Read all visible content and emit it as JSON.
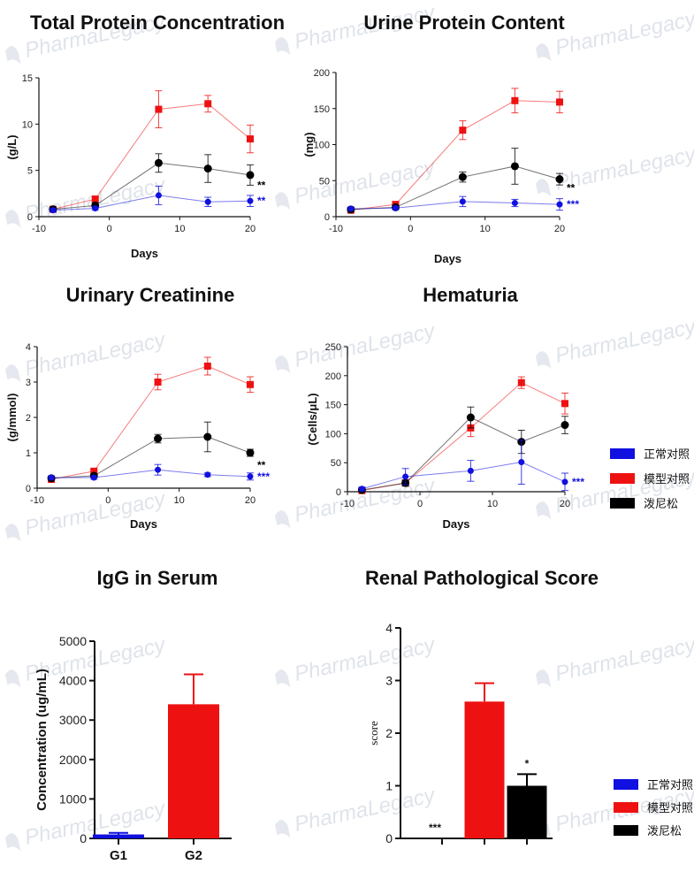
{
  "colors": {
    "normal": "#1010e0",
    "model": "#ee1111",
    "drug": "#000000",
    "axis": "#111111",
    "watermark": "#c5cdd9"
  },
  "watermark": "PharmaLegacy",
  "legend_top": [
    "正常对照",
    "模型对照",
    "泼尼松"
  ],
  "legend_bottom": [
    "正常对照",
    "模型对照",
    "泼尼松"
  ],
  "chart_data": [
    {
      "type": "line",
      "title": "Total Protein Concentration",
      "xlabel": "Days",
      "ylabel": "(g/L)",
      "xlim": [
        -10,
        20
      ],
      "ylim": [
        0,
        15
      ],
      "xticks": [
        -10,
        0,
        10,
        20
      ],
      "yticks": [
        0,
        5,
        10,
        15
      ],
      "x": [
        -8,
        -2,
        7,
        14,
        20
      ],
      "series": [
        {
          "key": "model",
          "values": [
            0.8,
            1.9,
            11.6,
            12.2,
            8.4
          ],
          "err": [
            0.2,
            0.3,
            2.0,
            0.9,
            1.5
          ]
        },
        {
          "key": "drug",
          "values": [
            0.8,
            1.2,
            5.8,
            5.2,
            4.5
          ],
          "err": [
            0.2,
            0.3,
            1.0,
            1.5,
            1.1
          ]
        },
        {
          "key": "normal",
          "values": [
            0.7,
            0.9,
            2.3,
            1.6,
            1.7
          ],
          "err": [
            0.2,
            0.2,
            1.0,
            0.5,
            0.6
          ],
          "sig": "**"
        }
      ],
      "annotations": [
        {
          "text": "**",
          "x": 20,
          "y": 3.4,
          "color": "drug"
        }
      ]
    },
    {
      "type": "line",
      "title": "Urine Protein Content",
      "xlabel": "Days",
      "ylabel": "(mg)",
      "xlim": [
        -10,
        20
      ],
      "ylim": [
        0,
        200
      ],
      "xticks": [
        -10,
        0,
        10,
        20
      ],
      "yticks": [
        0,
        50,
        100,
        150,
        200
      ],
      "x": [
        -8,
        -2,
        7,
        14,
        20
      ],
      "series": [
        {
          "key": "model",
          "values": [
            9,
            17,
            120,
            161,
            159
          ],
          "err": [
            2,
            3,
            13,
            17,
            15
          ]
        },
        {
          "key": "drug",
          "values": [
            10,
            13,
            55,
            70,
            52
          ],
          "err": [
            2,
            3,
            7,
            25,
            8
          ]
        },
        {
          "key": "normal",
          "values": [
            11,
            12,
            21,
            19,
            17
          ],
          "err": [
            2,
            2,
            7,
            5,
            8
          ],
          "sig": "***"
        }
      ],
      "annotations": [
        {
          "text": "**",
          "x": 20,
          "y": 40,
          "color": "drug"
        }
      ]
    },
    {
      "type": "line",
      "title": "Urinary Creatinine",
      "xlabel": "Days",
      "ylabel": "(g/mmol)",
      "xlim": [
        -10,
        20
      ],
      "ylim": [
        0,
        4
      ],
      "xticks": [
        -10,
        0,
        10,
        20
      ],
      "yticks": [
        0,
        1,
        2,
        3,
        4
      ],
      "x": [
        -8,
        -2,
        7,
        14,
        20
      ],
      "series": [
        {
          "key": "model",
          "values": [
            0.25,
            0.48,
            3.0,
            3.45,
            2.93
          ],
          "err": [
            0.05,
            0.05,
            0.22,
            0.25,
            0.22
          ]
        },
        {
          "key": "drug",
          "values": [
            0.28,
            0.35,
            1.4,
            1.45,
            1.0
          ],
          "err": [
            0.05,
            0.05,
            0.12,
            0.42,
            0.1
          ]
        },
        {
          "key": "normal",
          "values": [
            0.3,
            0.3,
            0.52,
            0.38,
            0.33
          ],
          "err": [
            0.05,
            0.05,
            0.15,
            0.05,
            0.1
          ],
          "sig": "***"
        }
      ],
      "annotations": [
        {
          "text": "**",
          "x": 20,
          "y": 0.65,
          "color": "drug"
        }
      ]
    },
    {
      "type": "line",
      "title": "Hematuria",
      "xlabel": "Days",
      "ylabel": "(Cells/μL)",
      "xlim": [
        -10,
        20
      ],
      "ylim": [
        0,
        250
      ],
      "xticks": [
        -10,
        0,
        10,
        20
      ],
      "yticks": [
        0,
        50,
        100,
        150,
        200,
        250
      ],
      "x": [
        -8,
        -2,
        7,
        14,
        20
      ],
      "series": [
        {
          "key": "model",
          "values": [
            2,
            15,
            110,
            188,
            152
          ],
          "err": [
            2,
            5,
            15,
            10,
            18
          ]
        },
        {
          "key": "drug",
          "values": [
            3,
            15,
            128,
            86,
            115
          ],
          "err": [
            2,
            5,
            18,
            20,
            15
          ]
        },
        {
          "key": "normal",
          "values": [
            5,
            26,
            36,
            51,
            17
          ],
          "err": [
            3,
            14,
            18,
            38,
            15
          ],
          "sig": "***"
        }
      ],
      "annotations": []
    },
    {
      "type": "bar",
      "title": "IgG in Serum",
      "xlabel": "",
      "ylabel": "Concentration (ug/mL)",
      "ylim": [
        0,
        5000
      ],
      "yticks": [
        0,
        1000,
        2000,
        3000,
        4000,
        5000
      ],
      "categories": [
        "G1",
        "G2"
      ],
      "values": [
        100,
        3400
      ],
      "err": [
        40,
        760
      ],
      "colors": [
        "normal",
        "model"
      ]
    },
    {
      "type": "bar",
      "title": "Renal Pathological Score",
      "xlabel": "",
      "ylabel": "score",
      "ylim": [
        0,
        4
      ],
      "yticks": [
        0,
        1,
        2,
        3,
        4
      ],
      "categories": [
        "",
        "",
        ""
      ],
      "values": [
        0,
        2.6,
        1.0
      ],
      "err": [
        0,
        0.35,
        0.22
      ],
      "colors": [
        "normal",
        "model",
        "drug"
      ],
      "labels": [
        "***",
        "",
        "*"
      ]
    }
  ]
}
